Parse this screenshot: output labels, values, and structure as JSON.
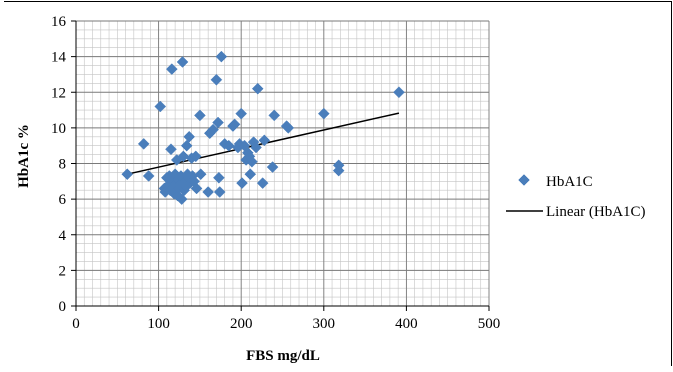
{
  "chart_data": {
    "type": "scatter",
    "title": "",
    "xlabel": "FBS mg/dL",
    "ylabel": "HbA1c %",
    "xlim": [
      0,
      500
    ],
    "ylim": [
      0,
      16
    ],
    "x_ticks": [
      0,
      100,
      200,
      300,
      400,
      500
    ],
    "y_ticks": [
      0,
      2,
      4,
      6,
      8,
      10,
      12,
      14,
      16
    ],
    "x_minor_step": 10,
    "y_minor_step": 0.5,
    "grid": true,
    "legend_position": "right",
    "colors": {
      "marker": "#4a7ebb",
      "trendline": "#000000"
    },
    "series": [
      {
        "name": "HbA1C",
        "marker": "diamond",
        "points": [
          [
            62,
            7.4
          ],
          [
            82,
            9.1
          ],
          [
            88,
            7.3
          ],
          [
            102,
            11.2
          ],
          [
            107,
            6.6
          ],
          [
            108,
            6.4
          ],
          [
            110,
            7.2
          ],
          [
            112,
            6.8
          ],
          [
            113,
            7.3
          ],
          [
            114,
            6.5
          ],
          [
            115,
            8.8
          ],
          [
            116,
            13.3
          ],
          [
            117,
            7.0
          ],
          [
            118,
            6.7
          ],
          [
            119,
            6.3
          ],
          [
            120,
            7.4
          ],
          [
            121,
            6.9
          ],
          [
            122,
            8.2
          ],
          [
            123,
            6.2
          ],
          [
            124,
            7.1
          ],
          [
            125,
            6.6
          ],
          [
            126,
            6.8
          ],
          [
            127,
            7.3
          ],
          [
            128,
            6.0
          ],
          [
            129,
            13.7
          ],
          [
            130,
            8.4
          ],
          [
            131,
            6.5
          ],
          [
            132,
            7.0
          ],
          [
            133,
            6.7
          ],
          [
            134,
            9.0
          ],
          [
            135,
            7.4
          ],
          [
            136,
            7.2
          ],
          [
            137,
            9.5
          ],
          [
            138,
            6.9
          ],
          [
            140,
            8.3
          ],
          [
            141,
            7.3
          ],
          [
            143,
            7.0
          ],
          [
            145,
            8.4
          ],
          [
            146,
            6.6
          ],
          [
            150,
            10.7
          ],
          [
            151,
            7.4
          ],
          [
            160,
            6.4
          ],
          [
            162,
            9.7
          ],
          [
            166,
            9.9
          ],
          [
            170,
            12.7
          ],
          [
            172,
            10.3
          ],
          [
            173,
            7.2
          ],
          [
            174,
            6.4
          ],
          [
            176,
            14.0
          ],
          [
            180,
            9.1
          ],
          [
            185,
            9.0
          ],
          [
            190,
            10.1
          ],
          [
            192,
            10.2
          ],
          [
            196,
            8.9
          ],
          [
            198,
            9.1
          ],
          [
            200,
            10.8
          ],
          [
            201,
            6.9
          ],
          [
            204,
            9.0
          ],
          [
            206,
            8.2
          ],
          [
            208,
            8.6
          ],
          [
            210,
            8.4
          ],
          [
            211,
            7.4
          ],
          [
            213,
            8.1
          ],
          [
            215,
            9.2
          ],
          [
            218,
            8.9
          ],
          [
            220,
            12.2
          ],
          [
            226,
            6.9
          ],
          [
            228,
            9.3
          ],
          [
            238,
            7.8
          ],
          [
            240,
            10.7
          ],
          [
            255,
            10.1
          ],
          [
            257,
            10.0
          ],
          [
            300,
            10.8
          ],
          [
            318,
            7.9
          ],
          [
            318,
            7.6
          ],
          [
            391,
            12.0
          ]
        ]
      },
      {
        "name": "Linear (HbA1C)",
        "type": "line",
        "points": [
          [
            62,
            7.4
          ],
          [
            391,
            10.83
          ]
        ]
      }
    ]
  }
}
